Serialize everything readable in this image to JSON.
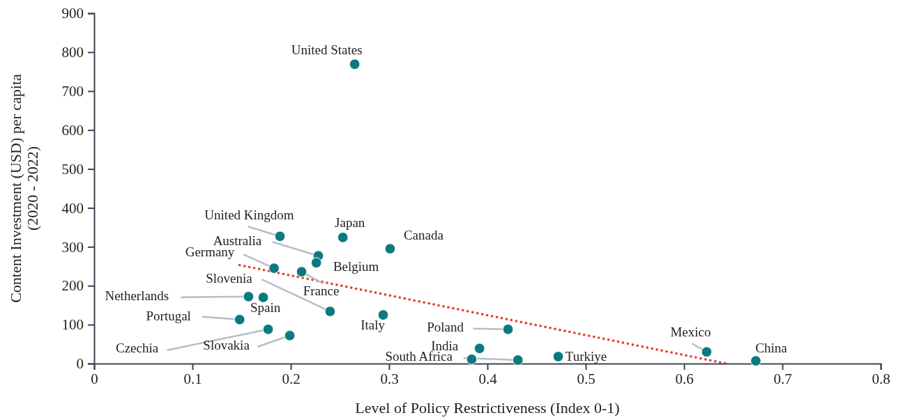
{
  "chart_data": {
    "type": "scatter",
    "xlabel": "Level of Policy Restrictiveness (Index 0-1)",
    "ylabel": "Content Investment (USD) per capita\n(2020 - 2022)",
    "xlim": [
      0,
      0.8
    ],
    "xticks": [
      0,
      0.1,
      0.2,
      0.3,
      0.4,
      0.5,
      0.6,
      0.7,
      0.8
    ],
    "ylim": [
      0,
      900
    ],
    "yticks": [
      0,
      100,
      200,
      300,
      400,
      500,
      600,
      700,
      800,
      900
    ],
    "grid": false,
    "marker": "circle",
    "series": [
      {
        "color": "#0b7a80",
        "x": [
          0.265,
          0.189,
          0.253,
          0.301,
          0.228,
          0.226,
          0.183,
          0.211,
          0.24,
          0.157,
          0.172,
          0.148,
          0.177,
          0.199,
          0.294,
          0.421,
          0.392,
          0.384,
          0.431,
          0.472,
          0.623,
          0.673
        ],
        "values": [
          769,
          327,
          324,
          295,
          277,
          259,
          245,
          236,
          134,
          172,
          170,
          113,
          88,
          72,
          125,
          88,
          39,
          11,
          9,
          18,
          30,
          7
        ]
      },
      {
        "type": "line",
        "color": "#e8392d",
        "line_style": "dotted",
        "marker": "none",
        "x": [
          0.148,
          0.643
        ],
        "values": [
          253,
          0
        ]
      }
    ],
    "annotations": [
      {
        "text": "United States",
        "x": 0.265,
        "y": 769
      },
      {
        "text": "United Kingdom",
        "x": 0.189,
        "y": 327
      },
      {
        "text": "Japan",
        "x": 0.253,
        "y": 324
      },
      {
        "text": "Canada",
        "x": 0.301,
        "y": 295
      },
      {
        "text": "Australia",
        "x": 0.228,
        "y": 277
      },
      {
        "text": "Belgium",
        "x": 0.226,
        "y": 259
      },
      {
        "text": "Germany",
        "x": 0.183,
        "y": 245
      },
      {
        "text": "France",
        "x": 0.211,
        "y": 236
      },
      {
        "text": "Slovenia",
        "x": 0.24,
        "y": 134
      },
      {
        "text": "Netherlands",
        "x": 0.157,
        "y": 172
      },
      {
        "text": "Spain",
        "x": 0.172,
        "y": 170
      },
      {
        "text": "Portugal",
        "x": 0.148,
        "y": 113
      },
      {
        "text": "Czechia",
        "x": 0.177,
        "y": 88
      },
      {
        "text": "Slovakia",
        "x": 0.199,
        "y": 72
      },
      {
        "text": "Italy",
        "x": 0.294,
        "y": 125
      },
      {
        "text": "Poland",
        "x": 0.421,
        "y": 88
      },
      {
        "text": "India",
        "x": 0.392,
        "y": 39
      },
      {
        "text": "South Africa",
        "x": 0.431,
        "y": 9
      },
      {
        "text": "Turkiye",
        "x": 0.472,
        "y": 18
      },
      {
        "text": "Mexico",
        "x": 0.623,
        "y": 30
      },
      {
        "text": "China",
        "x": 0.673,
        "y": 7
      }
    ]
  }
}
